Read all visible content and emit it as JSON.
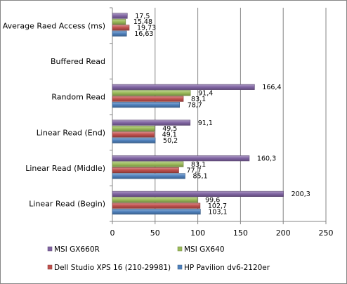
{
  "chart_data": {
    "type": "bar",
    "orientation": "horizontal",
    "categories": [
      "Average Raed Access (ms)",
      "Buffered Read",
      "Random Read",
      "Linear Read (End)",
      "Linear Read (Middle)",
      "Linear Read (Begin)"
    ],
    "series": [
      {
        "name": "MSI GX660R",
        "color": "#8064A2",
        "values": [
          17.5,
          null,
          166.4,
          91.1,
          160.3,
          200.3
        ],
        "labels": [
          "17,5",
          "",
          "166,4",
          "91,1",
          "160,3",
          "200,3"
        ]
      },
      {
        "name": "MSI GX640",
        "color": "#9BBB59",
        "values": [
          15.48,
          null,
          91.4,
          49.5,
          83.1,
          99.6
        ],
        "labels": [
          "15,48",
          "",
          "91,4",
          "49,5",
          "83,1",
          "99,6"
        ]
      },
      {
        "name": "Dell Studio XPS 16 (210-29981)",
        "color": "#C0504D",
        "values": [
          19.73,
          null,
          83.1,
          49.1,
          77.7,
          102.7
        ],
        "labels": [
          "19,73",
          "",
          "83,1",
          "49,1",
          "77,7",
          "102,7"
        ]
      },
      {
        "name": "HP Pavilion dv6-2120er",
        "color": "#4F81BD",
        "values": [
          16.63,
          null,
          78.7,
          50.2,
          85.1,
          103.1
        ],
        "labels": [
          "16,63",
          "",
          "78,7",
          "50,2",
          "85,1",
          "103,1"
        ]
      }
    ],
    "x_ticks": [
      "0",
      "50",
      "100",
      "150",
      "200",
      "250"
    ],
    "xlim": [
      0,
      250
    ],
    "grid": true,
    "legend_position": "bottom"
  }
}
